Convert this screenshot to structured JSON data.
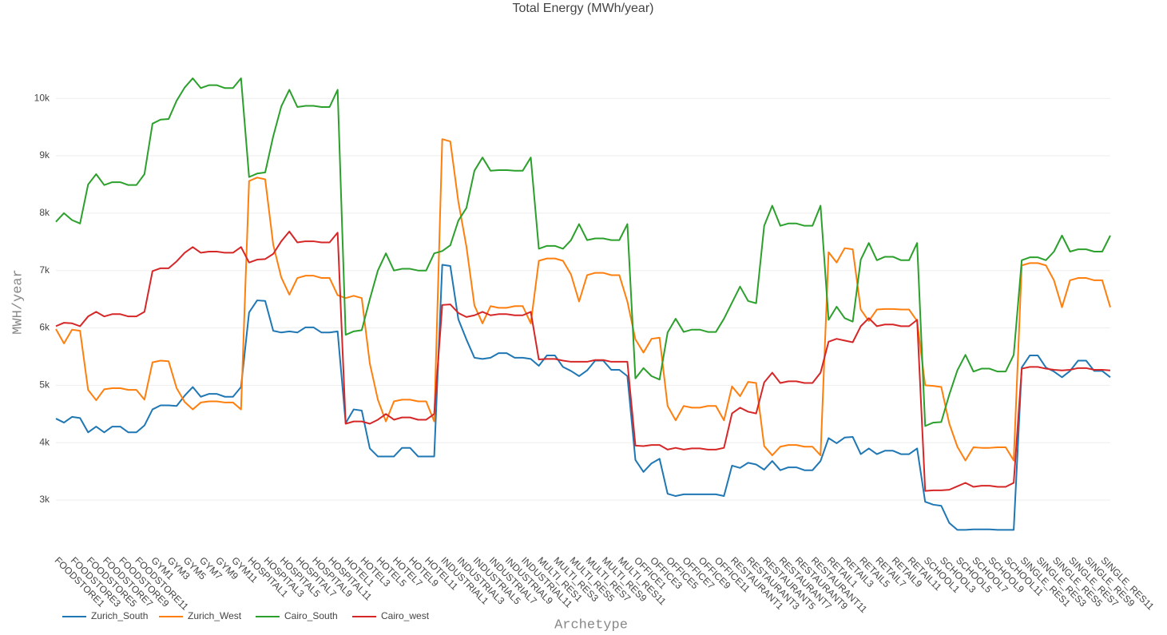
{
  "chart_data": {
    "type": "line",
    "title": "Total Energy (MWh/year)",
    "x_label": "Archetype",
    "y_label": "MWH/year",
    "categories": [
      "FOODSTORE1",
      null,
      "FOODSTORE3",
      null,
      "FOODSTORE5",
      null,
      "FOODSTORE7",
      null,
      "FOODSTORE9",
      null,
      "FOODSTORE11",
      null,
      "GYM1",
      null,
      "GYM3",
      null,
      "GYM5",
      null,
      "GYM7",
      null,
      "GYM9",
      null,
      "GYM11",
      null,
      "HOSPITAL1",
      null,
      "HOSPITAL3",
      null,
      "HOSPITAL5",
      null,
      "HOSPITAL7",
      null,
      "HOSPITAL9",
      null,
      "HOSPITAL11",
      null,
      "HOTEL1",
      null,
      "HOTEL3",
      null,
      "HOTEL5",
      null,
      "HOTEL7",
      null,
      "HOTEL9",
      null,
      "HOTEL11",
      null,
      "INDUSTRIAL1",
      null,
      "INDUSTRIAL3",
      null,
      "INDUSTRIAL5",
      null,
      "INDUSTRIAL7",
      null,
      "INDUSTRIAL9",
      null,
      "INDUSTRIAL11",
      null,
      "MULTI_RES1",
      null,
      "MULTI_RES3",
      null,
      "MULTI_RES5",
      null,
      "MULTI_RES7",
      null,
      "MULTI_RES9",
      null,
      "MULTI_RES11",
      null,
      "OFFICE1",
      null,
      "OFFICE3",
      null,
      "OFFICE5",
      null,
      "OFFICE7",
      null,
      "OFFICE9",
      null,
      "OFFICE11",
      null,
      "RESTAURANT1",
      null,
      "RESTAURANT3",
      null,
      "RESTAURANT5",
      null,
      "RESTAURANT7",
      null,
      "RESTAURANT9",
      null,
      "RESTAURANT11",
      null,
      "RETAIL1",
      null,
      "RETAIL3",
      null,
      "RETAIL5",
      null,
      "RETAIL7",
      null,
      "RETAIL9",
      null,
      "RETAIL11",
      null,
      "SCHOOL1",
      null,
      "SCHOOL3",
      null,
      "SCHOOL5",
      null,
      "SCHOOL7",
      null,
      "SCHOOL9",
      null,
      "SCHOOL11",
      null,
      "SINGLE_RES1",
      null,
      "SINGLE_RES3",
      null,
      "SINGLE_RES5",
      null,
      "SINGLE_RES7",
      null,
      "SINGLE_RES9",
      null,
      "SINGLE_RES11",
      null
    ],
    "series": [
      {
        "name": "Zurich_South",
        "color": "#1f77b4",
        "values": [
          4420,
          4350,
          4450,
          4430,
          4180,
          4280,
          4180,
          4280,
          4280,
          4180,
          4180,
          4300,
          4580,
          4650,
          4650,
          4640,
          4820,
          4970,
          4800,
          4850,
          4850,
          4800,
          4800,
          4970,
          6270,
          6480,
          6470,
          5950,
          5920,
          5940,
          5920,
          6010,
          6010,
          5920,
          5920,
          5940,
          4340,
          4580,
          4560,
          3900,
          3760,
          3760,
          3760,
          3910,
          3910,
          3760,
          3760,
          3760,
          7100,
          7080,
          6150,
          5800,
          5480,
          5460,
          5480,
          5560,
          5560,
          5480,
          5480,
          5460,
          5340,
          5520,
          5520,
          5320,
          5250,
          5160,
          5260,
          5430,
          5430,
          5270,
          5270,
          5160,
          3700,
          3490,
          3640,
          3720,
          3110,
          3070,
          3100,
          3100,
          3100,
          3100,
          3100,
          3070,
          3600,
          3560,
          3650,
          3620,
          3530,
          3680,
          3520,
          3570,
          3570,
          3520,
          3520,
          3680,
          4080,
          3990,
          4090,
          4100,
          3800,
          3900,
          3800,
          3860,
          3860,
          3800,
          3800,
          3900,
          2970,
          2920,
          2900,
          2600,
          2480,
          2480,
          2490,
          2490,
          2490,
          2480,
          2480,
          2480,
          5310,
          5520,
          5520,
          5310,
          5240,
          5140,
          5250,
          5430,
          5430,
          5250,
          5250,
          5140
        ]
      },
      {
        "name": "Zurich_West",
        "color": "#ff7f0e",
        "values": [
          5980,
          5730,
          5970,
          5950,
          4920,
          4740,
          4930,
          4950,
          4950,
          4920,
          4920,
          4750,
          5400,
          5430,
          5420,
          4950,
          4710,
          4580,
          4700,
          4720,
          4720,
          4700,
          4700,
          4580,
          8560,
          8620,
          8590,
          7450,
          6880,
          6580,
          6870,
          6910,
          6910,
          6870,
          6870,
          6570,
          6520,
          6560,
          6520,
          5380,
          4750,
          4370,
          4720,
          4750,
          4750,
          4720,
          4720,
          4370,
          9290,
          9250,
          8200,
          7420,
          6390,
          6080,
          6380,
          6350,
          6350,
          6380,
          6380,
          6080,
          7170,
          7210,
          7210,
          7170,
          6930,
          6460,
          6920,
          6960,
          6960,
          6920,
          6920,
          6460,
          5800,
          5570,
          5810,
          5830,
          4640,
          4390,
          4640,
          4610,
          4610,
          4640,
          4640,
          4390,
          4980,
          4810,
          5060,
          5040,
          3940,
          3780,
          3930,
          3960,
          3960,
          3930,
          3930,
          3780,
          7320,
          7140,
          7390,
          7370,
          6320,
          6120,
          6320,
          6330,
          6330,
          6320,
          6320,
          6120,
          5000,
          4990,
          4970,
          4330,
          3930,
          3690,
          3920,
          3910,
          3910,
          3920,
          3920,
          3690,
          7090,
          7130,
          7130,
          7090,
          6830,
          6360,
          6830,
          6870,
          6870,
          6830,
          6830,
          6360
        ]
      },
      {
        "name": "Cairo_South",
        "color": "#2ca02c",
        "values": [
          7850,
          8000,
          7880,
          7820,
          8500,
          8680,
          8490,
          8540,
          8540,
          8490,
          8490,
          8680,
          9560,
          9630,
          9640,
          9960,
          10190,
          10350,
          10180,
          10230,
          10230,
          10180,
          10180,
          10350,
          8630,
          8690,
          8710,
          9340,
          9860,
          10150,
          9850,
          9870,
          9870,
          9850,
          9850,
          10150,
          5880,
          5940,
          5960,
          6500,
          7000,
          7300,
          7000,
          7030,
          7030,
          7000,
          7000,
          7300,
          7340,
          7440,
          7870,
          8090,
          8740,
          8970,
          8740,
          8750,
          8750,
          8740,
          8740,
          8970,
          7380,
          7430,
          7430,
          7380,
          7530,
          7810,
          7530,
          7560,
          7560,
          7530,
          7530,
          7810,
          5120,
          5300,
          5160,
          5100,
          5920,
          6160,
          5930,
          5970,
          5970,
          5930,
          5930,
          6160,
          6440,
          6720,
          6470,
          6430,
          7780,
          8130,
          7780,
          7820,
          7820,
          7780,
          7780,
          8130,
          6140,
          6370,
          6170,
          6110,
          7190,
          7480,
          7180,
          7240,
          7240,
          7180,
          7180,
          7480,
          4290,
          4350,
          4360,
          4840,
          5260,
          5530,
          5240,
          5290,
          5290,
          5240,
          5240,
          5530,
          7180,
          7230,
          7230,
          7180,
          7330,
          7610,
          7330,
          7370,
          7370,
          7330,
          7330,
          7610
        ]
      },
      {
        "name": "Cairo_west",
        "color": "#d62728",
        "values": [
          6030,
          6090,
          6080,
          6030,
          6200,
          6280,
          6200,
          6240,
          6240,
          6200,
          6200,
          6280,
          6990,
          7040,
          7040,
          7160,
          7310,
          7410,
          7310,
          7330,
          7330,
          7310,
          7310,
          7410,
          7140,
          7190,
          7200,
          7290,
          7510,
          7680,
          7490,
          7510,
          7510,
          7490,
          7490,
          7660,
          4330,
          4370,
          4370,
          4330,
          4400,
          4500,
          4400,
          4440,
          4440,
          4400,
          4400,
          4500,
          6400,
          6410,
          6260,
          6190,
          6220,
          6280,
          6220,
          6240,
          6240,
          6220,
          6220,
          6280,
          5450,
          5460,
          5460,
          5430,
          5410,
          5410,
          5410,
          5440,
          5440,
          5410,
          5410,
          5410,
          3950,
          3940,
          3960,
          3960,
          3880,
          3910,
          3880,
          3900,
          3900,
          3880,
          3880,
          3910,
          4510,
          4610,
          4540,
          4510,
          5050,
          5220,
          5040,
          5070,
          5070,
          5040,
          5040,
          5220,
          5760,
          5810,
          5780,
          5750,
          6030,
          6170,
          6030,
          6060,
          6060,
          6030,
          6030,
          6140,
          3160,
          3170,
          3170,
          3180,
          3240,
          3300,
          3230,
          3250,
          3250,
          3230,
          3230,
          3300,
          5290,
          5320,
          5320,
          5290,
          5270,
          5260,
          5270,
          5300,
          5300,
          5270,
          5270,
          5260
        ]
      }
    ],
    "ylim": [
      2110,
      10810
    ],
    "yticks": [
      {
        "value": 3000,
        "label": "3k"
      },
      {
        "value": 4000,
        "label": "4k"
      },
      {
        "value": 5000,
        "label": "5k"
      },
      {
        "value": 6000,
        "label": "6k"
      },
      {
        "value": 7000,
        "label": "7k"
      },
      {
        "value": 8000,
        "label": "8k"
      },
      {
        "value": 9000,
        "label": "9k"
      },
      {
        "value": 10000,
        "label": "10k"
      }
    ],
    "grid": true,
    "legend": "bottom-left"
  }
}
